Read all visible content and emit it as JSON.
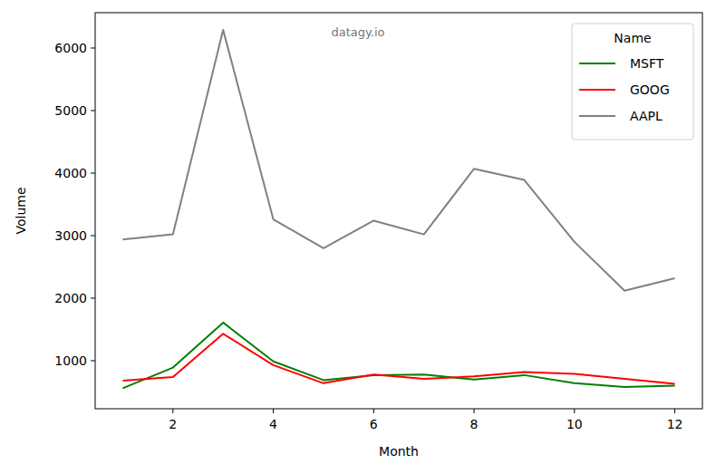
{
  "chart_data": {
    "type": "line",
    "x_label": "Month",
    "y_label": "Volume",
    "annotations": [
      "datagy.io"
    ],
    "legend_title": "Name",
    "legend": "upper right",
    "grid": false,
    "x": [
      1,
      2,
      3,
      4,
      5,
      6,
      7,
      8,
      9,
      10,
      11,
      12
    ],
    "xlim": [
      0.45,
      12.55
    ],
    "xticks": [
      2,
      4,
      6,
      8,
      10,
      12
    ],
    "ylim": [
      232,
      6565
    ],
    "yticks": [
      1000,
      2000,
      3000,
      4000,
      5000,
      6000
    ],
    "series": [
      {
        "name": "MSFT",
        "color": "#008000",
        "values": [
          560,
          890,
          1610,
          990,
          690,
          770,
          780,
          700,
          770,
          640,
          580,
          600
        ]
      },
      {
        "name": "GOOG",
        "color": "#ff0000",
        "values": [
          680,
          740,
          1430,
          930,
          640,
          780,
          710,
          750,
          820,
          790,
          710,
          630
        ]
      },
      {
        "name": "AAPL",
        "color": "#808080",
        "values": [
          2940,
          3020,
          6290,
          3260,
          2800,
          3240,
          3020,
          4070,
          3890,
          2900,
          2120,
          2320
        ]
      }
    ]
  }
}
